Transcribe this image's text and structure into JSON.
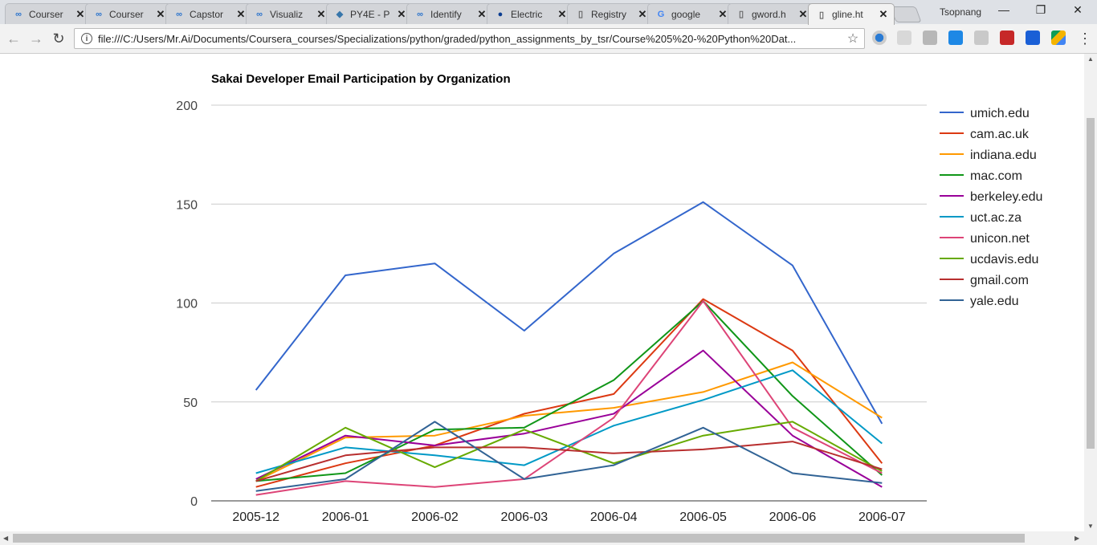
{
  "browser": {
    "tabs": [
      {
        "title": "Courser",
        "icon": "coursera-icon"
      },
      {
        "title": "Courser",
        "icon": "coursera-icon"
      },
      {
        "title": "Capstor",
        "icon": "coursera-icon"
      },
      {
        "title": "Visualiz",
        "icon": "coursera-icon"
      },
      {
        "title": "PY4E - P",
        "icon": "python-icon"
      },
      {
        "title": "Identify",
        "icon": "coursera-icon"
      },
      {
        "title": "Electric",
        "icon": "nasa-icon"
      },
      {
        "title": "Registry",
        "icon": "document-icon"
      },
      {
        "title": "google",
        "icon": "google-icon"
      },
      {
        "title": "gword.h",
        "icon": "document-icon"
      },
      {
        "title": "gline.ht",
        "icon": "document-icon",
        "active": true
      }
    ],
    "profile_name": "Tsopnang",
    "address": "file:///C:/Users/Mr.Ai/Documents/Coursera_courses/Specializations/python/graded/python_assignments_by_tsr/Course%205%20-%20Python%20Dat..."
  },
  "chart_data": {
    "type": "line",
    "title": "Sakai Developer Email Participation by Organization",
    "xlabel": "",
    "ylabel": "",
    "ylim": [
      0,
      200
    ],
    "yticks": [
      0,
      50,
      100,
      150,
      200
    ],
    "grid": true,
    "legend_position": "right",
    "categories": [
      "2005-12",
      "2006-01",
      "2006-02",
      "2006-03",
      "2006-04",
      "2006-05",
      "2006-06",
      "2006-07"
    ],
    "series": [
      {
        "name": "umich.edu",
        "color": "#3366cc",
        "values": [
          56,
          114,
          120,
          86,
          125,
          151,
          119,
          39
        ]
      },
      {
        "name": "cam.ac.uk",
        "color": "#dc3912",
        "values": [
          7,
          19,
          28,
          44,
          54,
          102,
          76,
          19
        ]
      },
      {
        "name": "indiana.edu",
        "color": "#ff9900",
        "values": [
          10,
          32,
          33,
          43,
          47,
          55,
          70,
          42
        ]
      },
      {
        "name": "mac.com",
        "color": "#109618",
        "values": [
          10,
          14,
          36,
          37,
          61,
          101,
          53,
          13
        ]
      },
      {
        "name": "berkeley.edu",
        "color": "#990099",
        "values": [
          11,
          33,
          28,
          34,
          44,
          76,
          33,
          7
        ]
      },
      {
        "name": "uct.ac.za",
        "color": "#0099c6",
        "values": [
          14,
          27,
          23,
          18,
          38,
          51,
          66,
          29
        ]
      },
      {
        "name": "unicon.net",
        "color": "#dd4477",
        "values": [
          3,
          10,
          7,
          11,
          42,
          101,
          37,
          14
        ]
      },
      {
        "name": "ucdavis.edu",
        "color": "#66aa00",
        "values": [
          10,
          37,
          17,
          36,
          19,
          33,
          40,
          15
        ]
      },
      {
        "name": "gmail.com",
        "color": "#b82e2e",
        "values": [
          10,
          23,
          27,
          27,
          24,
          26,
          30,
          16
        ]
      },
      {
        "name": "yale.edu",
        "color": "#316395",
        "values": [
          5,
          11,
          40,
          11,
          18,
          37,
          14,
          9
        ]
      }
    ]
  }
}
